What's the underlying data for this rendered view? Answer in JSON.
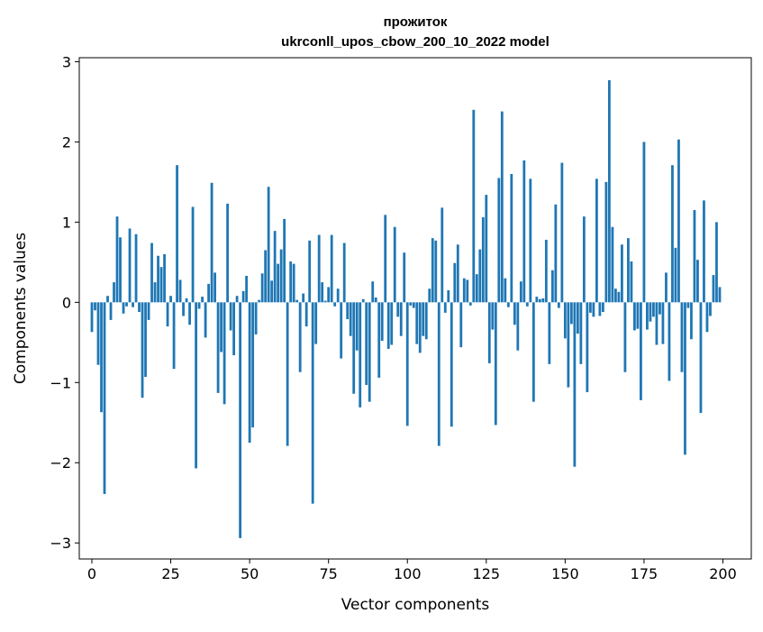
{
  "chart_data": {
    "type": "bar",
    "title_line1": "прожиток",
    "title_line2": "ukrconll_upos_cbow_200_10_2022 model",
    "xlabel": "Vector components",
    "ylabel": "Components values",
    "xlim": [
      -4,
      209
    ],
    "ylim": [
      -3.2,
      3.05
    ],
    "xticks": [
      0,
      25,
      50,
      75,
      100,
      125,
      150,
      175,
      200
    ],
    "xtick_labels": [
      "0",
      "25",
      "50",
      "75",
      "100",
      "125",
      "150",
      "175",
      "200"
    ],
    "yticks": [
      3,
      2,
      1,
      0,
      -1,
      -2,
      -3
    ],
    "ytick_labels": [
      "3",
      "2",
      "1",
      "0",
      "−1",
      "−2",
      "−3"
    ],
    "bar_color": "#1f77b4",
    "grid": false,
    "legend": "none",
    "x_start": 0,
    "values": [
      -0.37,
      -0.1,
      -0.78,
      -1.37,
      -2.39,
      0.08,
      -0.22,
      0.25,
      1.07,
      0.81,
      -0.14,
      -0.05,
      0.92,
      -0.06,
      0.85,
      -0.12,
      -1.19,
      -0.93,
      -0.22,
      0.74,
      0.25,
      0.58,
      0.44,
      0.6,
      -0.3,
      0.08,
      -0.83,
      1.71,
      0.28,
      -0.17,
      0.05,
      -0.28,
      1.19,
      -2.07,
      -0.08,
      0.07,
      -0.44,
      0.23,
      1.49,
      0.37,
      -1.13,
      -0.62,
      -1.27,
      1.23,
      -0.35,
      -0.66,
      0.08,
      -2.94,
      0.14,
      0.33,
      -1.75,
      -1.56,
      -0.4,
      0.03,
      0.36,
      0.65,
      1.44,
      0.27,
      0.89,
      0.48,
      0.66,
      1.04,
      -1.79,
      0.51,
      0.48,
      0.03,
      -0.87,
      0.11,
      -0.3,
      0.77,
      -2.51,
      -0.52,
      0.84,
      0.25,
      0.02,
      0.19,
      0.84,
      -0.05,
      0.17,
      -0.7,
      0.74,
      -0.21,
      -0.42,
      -1.14,
      -0.6,
      -1.31,
      0.04,
      -1.03,
      -1.24,
      0.26,
      0.06,
      -0.94,
      -0.48,
      1.09,
      -0.58,
      -0.53,
      0.94,
      -0.18,
      -0.42,
      0.62,
      -1.54,
      -0.04,
      -0.07,
      -0.52,
      -0.63,
      -0.42,
      -0.46,
      0.17,
      0.8,
      0.77,
      -1.79,
      1.18,
      -0.13,
      0.15,
      -1.55,
      0.49,
      0.72,
      -0.56,
      0.3,
      0.28,
      -0.04,
      2.4,
      0.35,
      0.66,
      1.06,
      1.34,
      -0.76,
      -0.34,
      -1.53,
      1.55,
      2.38,
      0.3,
      -0.06,
      1.6,
      -0.28,
      -0.6,
      0.26,
      1.77,
      -0.05,
      1.54,
      -1.24,
      0.07,
      0.04,
      0.05,
      0.78,
      -0.77,
      0.4,
      1.22,
      -0.07,
      1.74,
      -0.45,
      -1.06,
      -0.27,
      -2.05,
      -0.39,
      -0.77,
      1.07,
      -1.12,
      -0.13,
      -0.18,
      1.54,
      -0.17,
      -0.12,
      1.5,
      2.77,
      0.94,
      0.17,
      0.13,
      0.72,
      -0.87,
      0.8,
      0.51,
      -0.35,
      -0.33,
      -1.22,
      2.0,
      -0.34,
      -0.24,
      -0.18,
      -0.53,
      -0.15,
      -0.52,
      0.37,
      -0.98,
      1.71,
      0.68,
      2.03,
      -0.87,
      -1.9,
      -0.07,
      -0.46,
      1.15,
      0.53,
      -1.38,
      1.27,
      -0.37,
      -0.17,
      0.34,
      1.0,
      0.19
    ]
  }
}
